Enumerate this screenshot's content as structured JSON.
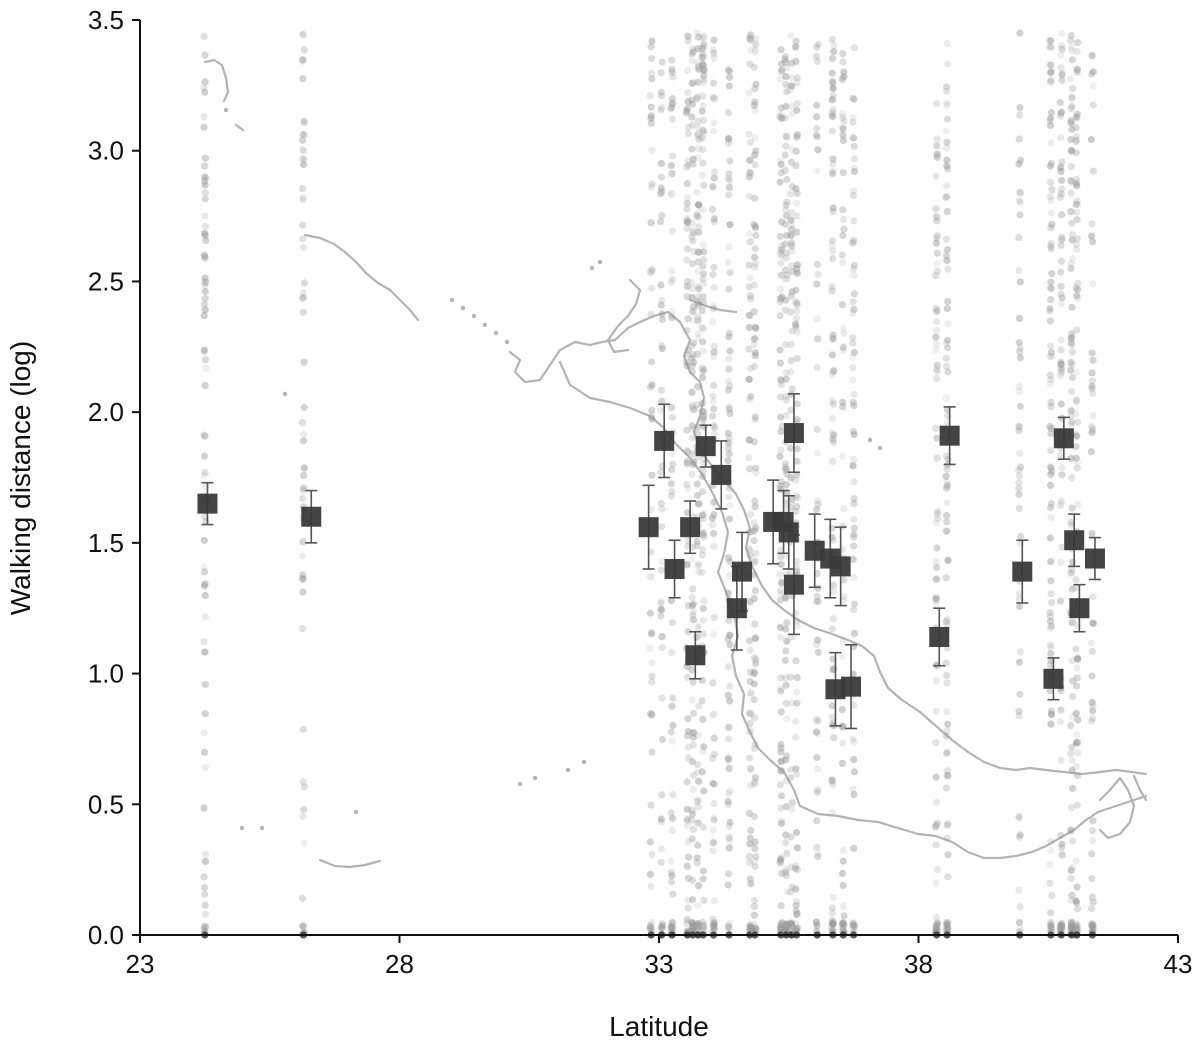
{
  "chart_data": {
    "type": "scatter",
    "xlabel": "Latitude",
    "ylabel": "Walking distance (log)",
    "xlim": [
      23,
      43
    ],
    "ylim": [
      0,
      3.5
    ],
    "x_ticks": [
      "23",
      "28",
      "33",
      "38",
      "43"
    ],
    "y_ticks": [
      "0.0",
      "0.5",
      "1.0",
      "1.5",
      "2.0",
      "2.5",
      "3.0",
      "3.5"
    ],
    "grid": false,
    "legend": "none",
    "colors": {
      "mean_marker": "#3a3a3a",
      "raw_points": "#9a9a9a",
      "error_bar": "#555555",
      "background_map": "#b3b3b3"
    },
    "series": [
      {
        "marker": "square",
        "values": [
          {
            "x": 24.3,
            "y": 1.65,
            "err": 0.08
          },
          {
            "x": 26.3,
            "y": 1.6,
            "err": 0.1
          },
          {
            "x": 32.8,
            "y": 1.56,
            "err": 0.16
          },
          {
            "x": 33.1,
            "y": 1.89,
            "err": 0.14
          },
          {
            "x": 33.3,
            "y": 1.4,
            "err": 0.11
          },
          {
            "x": 33.6,
            "y": 1.56,
            "err": 0.1
          },
          {
            "x": 33.7,
            "y": 1.07,
            "err": 0.09
          },
          {
            "x": 33.9,
            "y": 1.87,
            "err": 0.08
          },
          {
            "x": 34.2,
            "y": 1.76,
            "err": 0.13
          },
          {
            "x": 34.5,
            "y": 1.25,
            "err": 0.16
          },
          {
            "x": 34.6,
            "y": 1.39,
            "err": 0.15
          },
          {
            "x": 35.2,
            "y": 1.58,
            "err": 0.16
          },
          {
            "x": 35.4,
            "y": 1.58,
            "err": 0.12
          },
          {
            "x": 35.5,
            "y": 1.54,
            "err": 0.14
          },
          {
            "x": 35.6,
            "y": 1.92,
            "err": 0.15
          },
          {
            "x": 35.6,
            "y": 1.34,
            "err": 0.19
          },
          {
            "x": 36.0,
            "y": 1.47,
            "err": 0.14
          },
          {
            "x": 36.3,
            "y": 1.44,
            "err": 0.15
          },
          {
            "x": 36.5,
            "y": 1.41,
            "err": 0.15
          },
          {
            "x": 36.4,
            "y": 0.94,
            "err": 0.14
          },
          {
            "x": 36.7,
            "y": 0.95,
            "err": 0.16
          },
          {
            "x": 38.4,
            "y": 1.14,
            "err": 0.11
          },
          {
            "x": 38.6,
            "y": 1.91,
            "err": 0.11
          },
          {
            "x": 40.0,
            "y": 1.39,
            "err": 0.12
          },
          {
            "x": 40.6,
            "y": 0.98,
            "err": 0.08
          },
          {
            "x": 40.8,
            "y": 1.9,
            "err": 0.08
          },
          {
            "x": 41.0,
            "y": 1.51,
            "err": 0.1
          },
          {
            "x": 41.1,
            "y": 1.25,
            "err": 0.09
          },
          {
            "x": 41.4,
            "y": 1.44,
            "err": 0.08
          }
        ]
      },
      {
        "marker": "raw-point-columns",
        "columns_x": [
          24.25,
          26.15,
          32.85,
          33.05,
          33.25,
          33.55,
          33.65,
          33.75,
          33.85,
          34.05,
          34.35,
          34.75,
          34.85,
          35.35,
          35.45,
          35.55,
          35.65,
          36.05,
          36.35,
          36.55,
          36.75,
          38.35,
          38.55,
          39.95,
          40.55,
          40.75,
          40.95,
          41.05,
          41.35
        ]
      }
    ]
  }
}
